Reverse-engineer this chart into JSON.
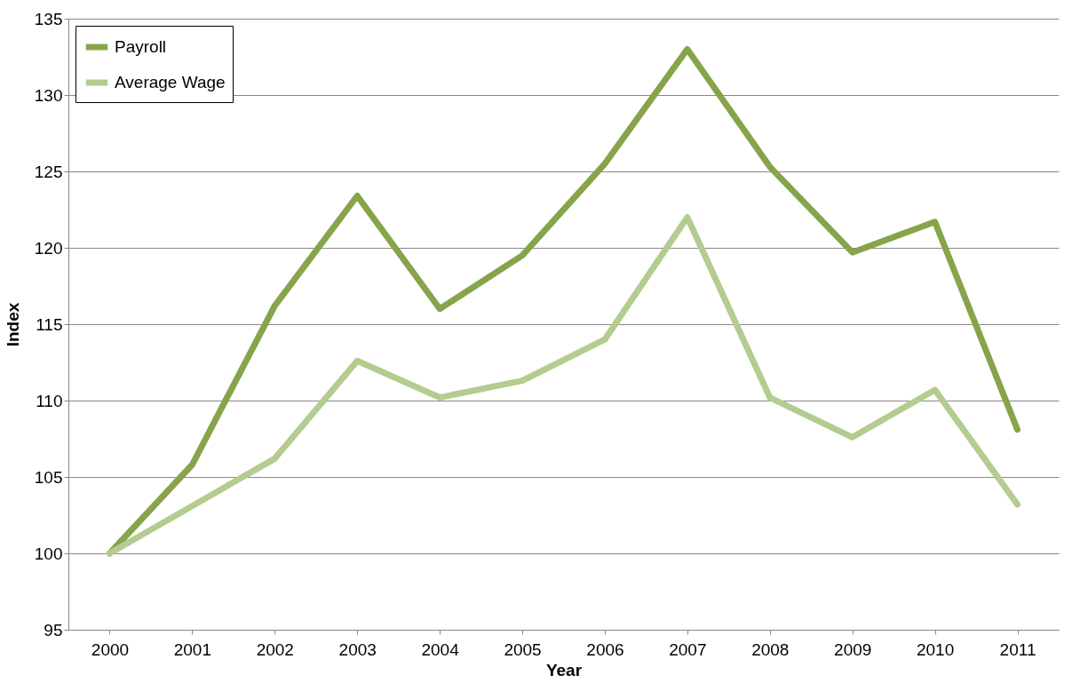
{
  "chart_data": {
    "type": "line",
    "xlabel": "Year",
    "ylabel": "Index",
    "categories": [
      "2000",
      "2001",
      "2002",
      "2003",
      "2004",
      "2005",
      "2006",
      "2007",
      "2008",
      "2009",
      "2010",
      "2011"
    ],
    "series": [
      {
        "name": "Payroll",
        "color": "#86a44a",
        "values": [
          100,
          105.8,
          116.2,
          123.4,
          116.0,
          119.5,
          125.5,
          133.0,
          125.3,
          119.7,
          121.7,
          108.1
        ]
      },
      {
        "name": "Average Wage",
        "color": "#b3cc8f",
        "values": [
          100,
          103.1,
          106.2,
          112.6,
          110.2,
          111.3,
          114.0,
          122.0,
          110.2,
          107.6,
          110.7,
          103.2
        ]
      }
    ],
    "ylim": [
      95,
      135
    ],
    "yticks": [
      95,
      100,
      105,
      110,
      115,
      120,
      125,
      130,
      135
    ],
    "grid": "y",
    "legend": "top left",
    "marker": "none",
    "line_style": "solid"
  }
}
